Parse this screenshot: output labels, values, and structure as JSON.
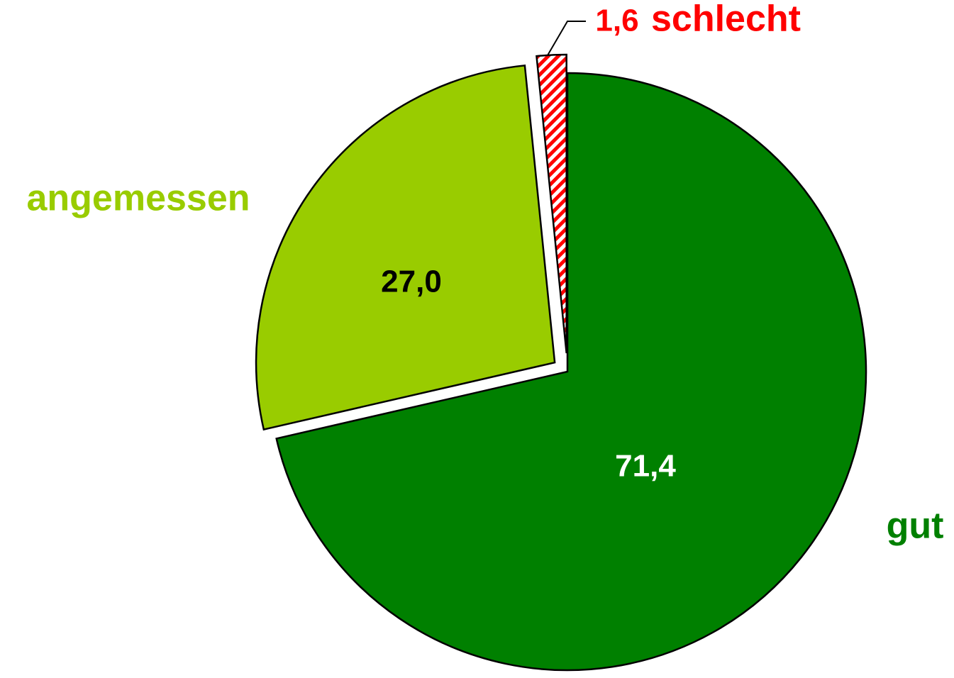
{
  "chart_data": {
    "type": "pie",
    "categories": [
      "gut",
      "angemessen",
      "schlecht"
    ],
    "values": [
      71.4,
      27.0,
      1.6
    ],
    "value_labels": [
      "71,4",
      "27,0",
      "1,6"
    ],
    "colors": [
      "#008000",
      "#99cc00",
      "#ff0000"
    ],
    "hatched": [
      false,
      false,
      true
    ],
    "label_colors": [
      "#ffffff",
      "#000000",
      "#ff0000"
    ]
  }
}
